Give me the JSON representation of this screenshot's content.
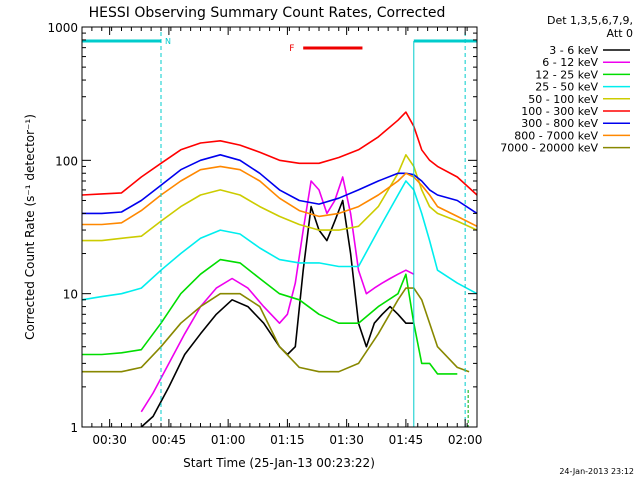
{
  "chart_data": {
    "type": "line",
    "title": "HESSI Observing Summary Count Rates, Corrected",
    "xlabel": "Start Time (25-Jan-13 00:23:22)",
    "ylabel": "Corrected Count Rate (s⁻¹ detector⁻¹)",
    "y_scale": "log",
    "ylim": [
      1,
      1000
    ],
    "xlim_minutes": [
      0,
      100
    ],
    "x_ticks": [
      {
        "t": 7,
        "label": "00:30"
      },
      {
        "t": 22,
        "label": "00:45"
      },
      {
        "t": 37,
        "label": "01:00"
      },
      {
        "t": 52,
        "label": "01:15"
      },
      {
        "t": 67,
        "label": "01:30"
      },
      {
        "t": 82,
        "label": "01:45"
      },
      {
        "t": 97,
        "label": "02:00"
      }
    ],
    "y_ticks": [
      {
        "v": 1,
        "label": "1"
      },
      {
        "v": 10,
        "label": "10"
      },
      {
        "v": 100,
        "label": "100"
      },
      {
        "v": 1000,
        "label": "1000"
      }
    ],
    "legend_header": [
      "Det 1,3,5,6,7,9,",
      "Att 0"
    ],
    "legend_position": "right-outside",
    "series": [
      {
        "name": "3 - 6 keV",
        "color": "#000000",
        "x": [
          15,
          18,
          22,
          26,
          30,
          34,
          38,
          42,
          46,
          50,
          52,
          54,
          56,
          58,
          60,
          62,
          64,
          66,
          68,
          70,
          72,
          74,
          76,
          78,
          80,
          82,
          84
        ],
        "y": [
          1,
          1.2,
          2,
          3.5,
          5,
          7,
          9,
          8,
          6,
          4,
          3.5,
          4,
          15,
          45,
          30,
          25,
          35,
          50,
          20,
          6,
          4,
          6,
          7,
          8,
          7,
          6,
          6
        ]
      },
      {
        "name": "6 - 12 keV",
        "color": "#ee00ee",
        "x": [
          15,
          18,
          22,
          26,
          30,
          34,
          38,
          42,
          46,
          50,
          52,
          54,
          56,
          58,
          60,
          62,
          64,
          66,
          68,
          70,
          72,
          74,
          76,
          78,
          80,
          82,
          84
        ],
        "y": [
          1.3,
          1.8,
          3,
          5,
          8,
          11,
          13,
          11,
          8,
          6,
          7,
          12,
          30,
          70,
          60,
          40,
          50,
          75,
          40,
          15,
          10,
          11,
          12,
          13,
          14,
          15,
          14
        ]
      },
      {
        "name": "12 - 25 keV",
        "color": "#00dd00",
        "x": [
          0,
          5,
          10,
          15,
          20,
          25,
          30,
          35,
          40,
          45,
          50,
          55,
          60,
          65,
          70,
          75,
          80,
          82,
          84,
          86,
          88,
          90,
          95
        ],
        "y": [
          3.5,
          3.5,
          3.6,
          3.8,
          6,
          10,
          14,
          18,
          17,
          13,
          10,
          9,
          7,
          6,
          6,
          8,
          10,
          14,
          6,
          3,
          3,
          2.5,
          2.5
        ]
      },
      {
        "name": "25 - 50 keV",
        "color": "#00eeee",
        "x": [
          0,
          5,
          10,
          15,
          20,
          25,
          30,
          35,
          40,
          45,
          50,
          55,
          60,
          65,
          70,
          75,
          80,
          82,
          84,
          86,
          88,
          90,
          95,
          100
        ],
        "y": [
          9,
          9.5,
          10,
          11,
          15,
          20,
          26,
          30,
          28,
          22,
          18,
          17,
          17,
          16,
          16,
          30,
          55,
          70,
          60,
          40,
          25,
          15,
          12,
          10
        ]
      },
      {
        "name": "50 - 100 keV",
        "color": "#cccc00",
        "x": [
          0,
          5,
          10,
          15,
          20,
          25,
          30,
          35,
          40,
          45,
          50,
          55,
          60,
          65,
          70,
          75,
          80,
          82,
          84,
          86,
          88,
          90,
          95,
          100
        ],
        "y": [
          25,
          25,
          26,
          27,
          35,
          45,
          55,
          60,
          55,
          45,
          38,
          33,
          30,
          30,
          32,
          45,
          80,
          110,
          90,
          60,
          45,
          40,
          35,
          30
        ]
      },
      {
        "name": "100 - 300 keV",
        "color": "#ff0000",
        "x": [
          0,
          5,
          10,
          15,
          20,
          25,
          30,
          35,
          40,
          45,
          50,
          55,
          60,
          65,
          70,
          75,
          80,
          82,
          84,
          86,
          88,
          90,
          95,
          100
        ],
        "y": [
          55,
          56,
          57,
          75,
          95,
          120,
          135,
          140,
          130,
          115,
          100,
          95,
          95,
          105,
          120,
          150,
          200,
          230,
          180,
          120,
          100,
          90,
          75,
          55
        ]
      },
      {
        "name": "300 - 800 keV",
        "color": "#0000ee",
        "x": [
          0,
          5,
          10,
          15,
          20,
          25,
          30,
          35,
          40,
          45,
          50,
          55,
          60,
          65,
          70,
          75,
          80,
          82,
          84,
          86,
          88,
          90,
          95,
          100
        ],
        "y": [
          40,
          40,
          41,
          50,
          65,
          85,
          100,
          110,
          100,
          80,
          60,
          50,
          47,
          52,
          60,
          70,
          80,
          80,
          78,
          70,
          60,
          55,
          50,
          40
        ]
      },
      {
        "name": "800 - 7000 keV",
        "color": "#ff8800",
        "x": [
          0,
          5,
          10,
          15,
          20,
          25,
          30,
          35,
          40,
          45,
          50,
          55,
          60,
          65,
          70,
          75,
          80,
          82,
          84,
          86,
          88,
          90,
          95,
          100
        ],
        "y": [
          33,
          33,
          34,
          42,
          55,
          70,
          85,
          90,
          85,
          70,
          52,
          42,
          38,
          40,
          45,
          55,
          70,
          80,
          75,
          65,
          55,
          45,
          38,
          32
        ]
      },
      {
        "name": "7000 - 20000 keV",
        "color": "#888800",
        "x": [
          0,
          5,
          10,
          15,
          20,
          25,
          30,
          35,
          40,
          45,
          50,
          55,
          60,
          65,
          70,
          75,
          80,
          82,
          84,
          86,
          88,
          90,
          95,
          98
        ],
        "y": [
          2.6,
          2.6,
          2.6,
          2.8,
          4,
          6,
          8,
          10,
          10,
          8,
          4,
          2.8,
          2.6,
          2.6,
          3,
          5,
          9,
          11,
          11,
          9,
          6,
          4,
          2.8,
          2.6
        ]
      }
    ],
    "annotations": {
      "N": {
        "color": "#00cccc",
        "segments": [
          [
            0,
            20
          ],
          [
            84,
            100
          ]
        ],
        "dashed_x": [
          20,
          97
        ]
      },
      "F": {
        "color": "#ee0000",
        "segment": [
          56,
          71
        ]
      },
      "solid_x": [
        84
      ],
      "green_x": [
        97
      ]
    },
    "timestamp": "24-Jan-2013 23:12"
  }
}
